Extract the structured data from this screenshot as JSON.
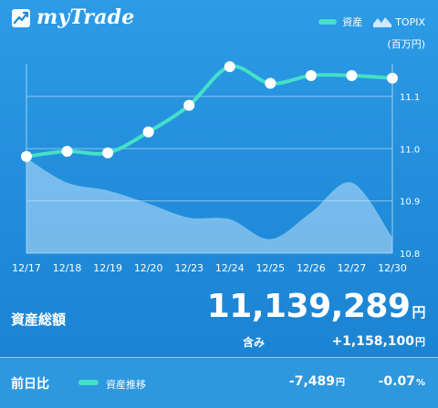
{
  "app": {
    "name": "myTrade"
  },
  "legend": {
    "assets": "資産",
    "topix": "TOPIX"
  },
  "unit": "(百万円)",
  "chart_data": {
    "type": "line",
    "x": [
      "12/17",
      "12/18",
      "12/19",
      "12/20",
      "12/23",
      "12/24",
      "12/25",
      "12/26",
      "12/27",
      "12/30"
    ],
    "yticks": [
      10.8,
      10.9,
      11.0,
      11.1
    ],
    "ylim": [
      10.8,
      11.18
    ],
    "series": [
      {
        "name": "資産",
        "values": [
          10.985,
          10.995,
          10.992,
          11.032,
          11.083,
          11.157,
          11.125,
          11.14,
          11.14,
          11.135
        ]
      },
      {
        "name": "TOPIX",
        "values": [
          10.982,
          10.935,
          10.92,
          10.895,
          10.868,
          10.865,
          10.827,
          10.878,
          10.935,
          10.83
        ]
      }
    ],
    "colors": {
      "assets": "#45e0c8",
      "topix": "#8fc8f0"
    }
  },
  "summary": {
    "total_label": "資産総額",
    "total_value": "11,139,289",
    "yen": "円",
    "included_label": "含み",
    "included_value": "+1,158,100"
  },
  "comparison": {
    "label": "前日比",
    "trend_label": "資産推移",
    "diff_value": "-7,489",
    "diff_pct": "-0.07",
    "pct_sign": "%"
  }
}
